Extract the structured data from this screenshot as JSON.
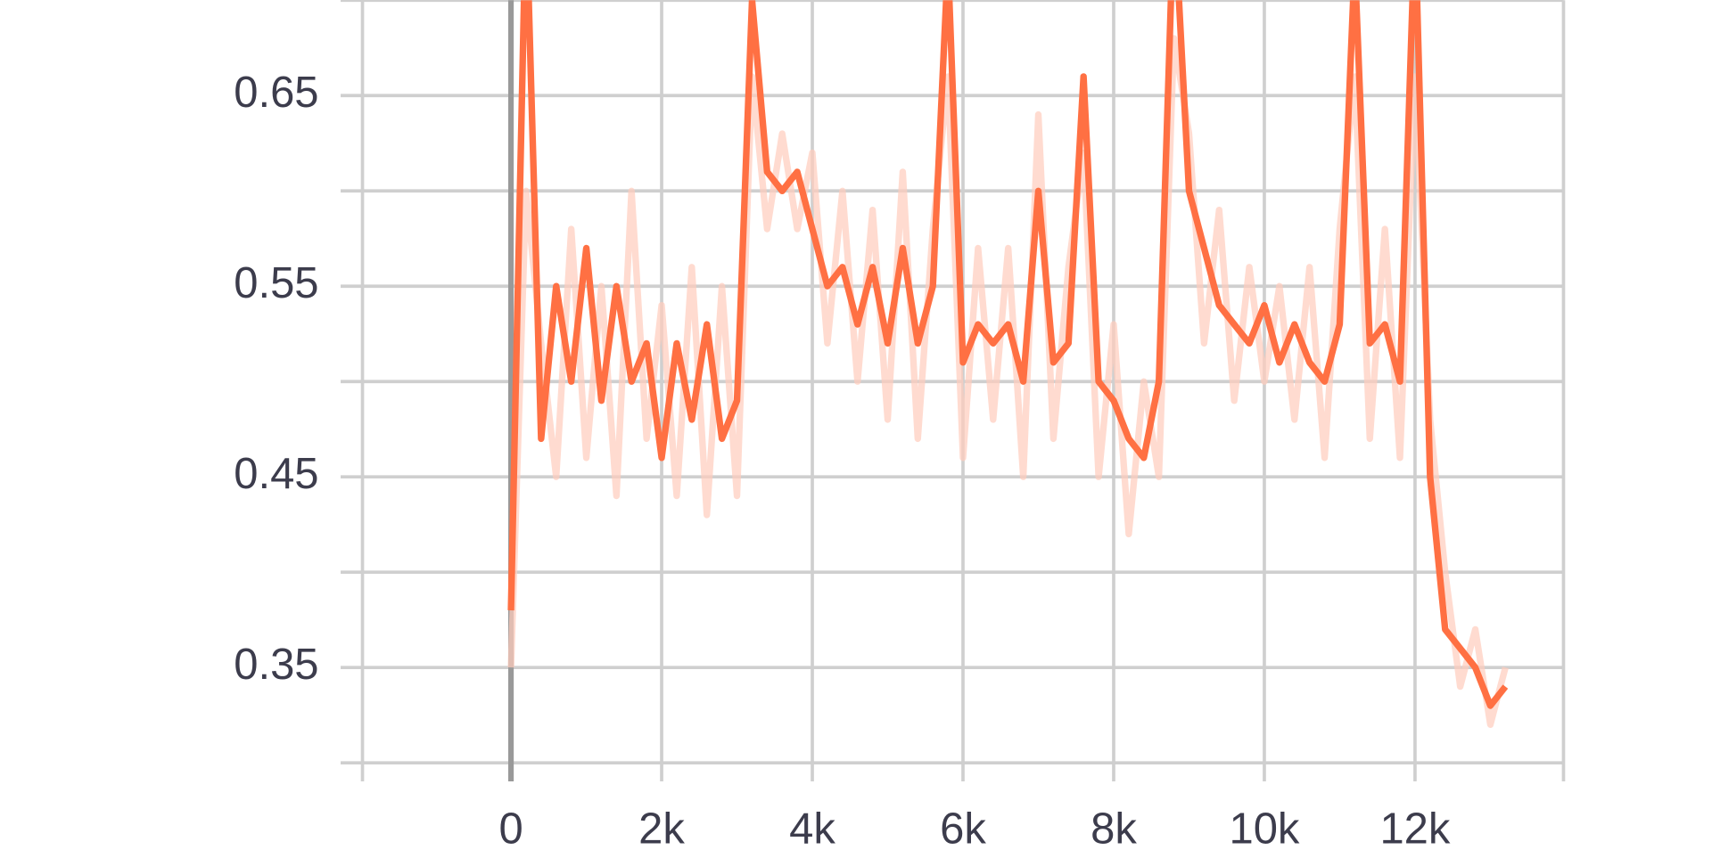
{
  "chart_data": {
    "type": "line",
    "x": [
      0,
      200,
      400,
      600,
      800,
      1000,
      1200,
      1400,
      1600,
      1800,
      2000,
      2200,
      2400,
      2600,
      2800,
      3000,
      3200,
      3400,
      3600,
      3800,
      4000,
      4200,
      4400,
      4600,
      4800,
      5000,
      5200,
      5400,
      5600,
      5800,
      6000,
      6200,
      6400,
      6600,
      6800,
      7000,
      7200,
      7400,
      7600,
      7800,
      8000,
      8200,
      8400,
      8600,
      8800,
      9000,
      9200,
      9400,
      9600,
      9800,
      10000,
      10200,
      10400,
      10600,
      10800,
      11000,
      11200,
      11400,
      11600,
      11800,
      12000,
      12200,
      12400,
      12600,
      12800,
      13000,
      13200
    ],
    "series": [
      {
        "color": "#ffccbc",
        "values": [
          0.35,
          0.6,
          0.52,
          0.45,
          0.58,
          0.46,
          0.55,
          0.44,
          0.6,
          0.47,
          0.54,
          0.44,
          0.56,
          0.43,
          0.55,
          0.44,
          0.66,
          0.58,
          0.63,
          0.58,
          0.62,
          0.52,
          0.6,
          0.5,
          0.59,
          0.48,
          0.61,
          0.47,
          0.58,
          0.66,
          0.46,
          0.57,
          0.48,
          0.57,
          0.45,
          0.64,
          0.47,
          0.56,
          0.62,
          0.45,
          0.53,
          0.42,
          0.5,
          0.45,
          0.68,
          0.63,
          0.52,
          0.59,
          0.49,
          0.56,
          0.5,
          0.55,
          0.48,
          0.56,
          0.46,
          0.58,
          0.66,
          0.47,
          0.58,
          0.46,
          0.66,
          0.48,
          0.4,
          0.34,
          0.37,
          0.32,
          0.35
        ]
      },
      {
        "color": "#ff7043",
        "values": [
          0.38,
          0.75,
          0.47,
          0.55,
          0.5,
          0.57,
          0.49,
          0.55,
          0.5,
          0.52,
          0.46,
          0.52,
          0.48,
          0.53,
          0.47,
          0.49,
          0.7,
          0.61,
          0.6,
          0.61,
          0.58,
          0.55,
          0.56,
          0.53,
          0.56,
          0.52,
          0.57,
          0.52,
          0.55,
          0.72,
          0.51,
          0.53,
          0.52,
          0.53,
          0.5,
          0.6,
          0.51,
          0.52,
          0.66,
          0.5,
          0.49,
          0.47,
          0.46,
          0.5,
          0.75,
          0.6,
          0.57,
          0.54,
          0.53,
          0.52,
          0.54,
          0.51,
          0.53,
          0.51,
          0.5,
          0.53,
          0.72,
          0.52,
          0.53,
          0.5,
          0.74,
          0.45,
          0.37,
          0.36,
          0.35,
          0.33,
          0.34
        ]
      }
    ],
    "xlim": [
      -1971,
      13971
    ],
    "ylim": [
      0.3,
      0.7
    ],
    "xticks": [
      0,
      {
        "value": 2000,
        "label": "2k"
      },
      {
        "value": 4000,
        "label": "4k"
      },
      {
        "value": 6000,
        "label": "6k"
      },
      {
        "value": 8000,
        "label": "8k"
      },
      {
        "value": 10000,
        "label": "10k"
      },
      {
        "value": 12000,
        "label": "12k"
      }
    ],
    "yticks": [
      0.35,
      0.45,
      0.55,
      0.65
    ],
    "y_minor_ticks": [
      0.3,
      0.4,
      0.5,
      0.6,
      0.7
    ],
    "grid": true
  }
}
